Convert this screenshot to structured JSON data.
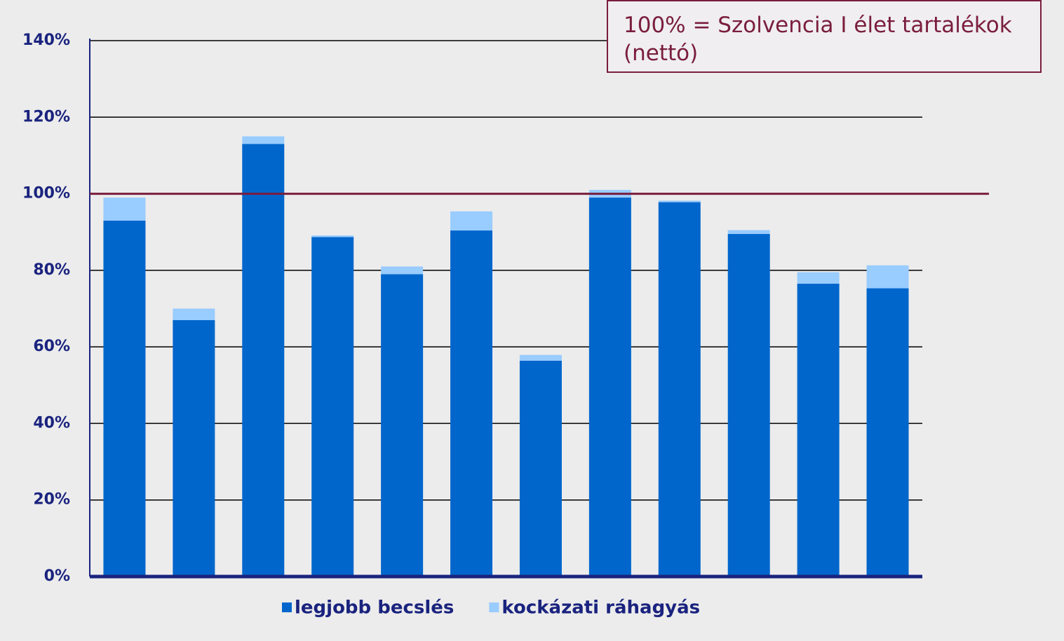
{
  "chart_data": {
    "type": "stacked_bar",
    "annotation": "100% = Szolvencia I élet tartalékok (nettó)",
    "categories": [
      null,
      null,
      null,
      null,
      null,
      null,
      null,
      null,
      null,
      null,
      null,
      null
    ],
    "series": [
      {
        "name": "legjobb becslés",
        "color": "#0066cc",
        "values": [
          93,
          67,
          113,
          88.7,
          79,
          90.4,
          56.4,
          99,
          97.8,
          89.5,
          76.5,
          75.3
        ]
      },
      {
        "name": "kockázati ráhagyás",
        "color": "#99ccff",
        "values": [
          6,
          3,
          2,
          0.4,
          2,
          5,
          1.5,
          2,
          0.4,
          1,
          3,
          6
        ]
      }
    ],
    "reference_line": {
      "value": 100,
      "color": "#7a1d3c"
    },
    "ylim": [
      0,
      140
    ],
    "yticks": [
      {
        "value": 0,
        "label": "0%"
      },
      {
        "value": 20,
        "label": "20%"
      },
      {
        "value": 40,
        "label": "40%"
      },
      {
        "value": 60,
        "label": "60%"
      },
      {
        "value": 80,
        "label": "80%"
      },
      {
        "value": 100,
        "label": "100%"
      },
      {
        "value": 120,
        "label": "120%"
      },
      {
        "value": 140,
        "label": "140%"
      }
    ],
    "grid": true
  }
}
